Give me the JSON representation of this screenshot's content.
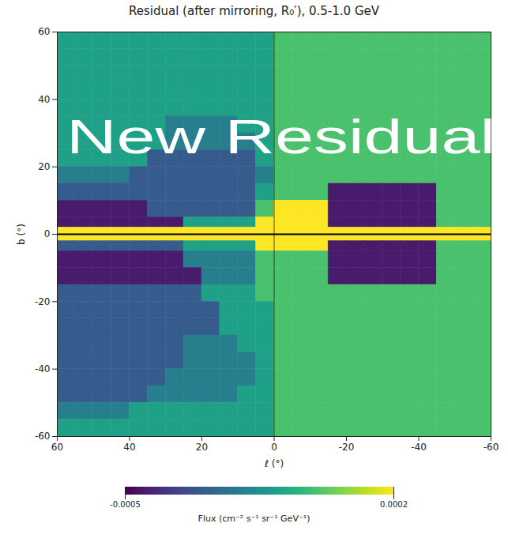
{
  "chart_data": {
    "type": "heatmap",
    "title": "Residual (after mirroring, R₀′), 0.5-1.0 GeV",
    "overlay_text": "New Residual",
    "x_label": "ℓ (°)",
    "y_label": "b (°)",
    "color": "viridis",
    "xlim": [
      60,
      -60
    ],
    "xticks": [
      60,
      40,
      20,
      0,
      -20,
      -40,
      -60
    ],
    "ylim": [
      -60,
      60
    ],
    "yticks": [
      -60,
      -40,
      -20,
      0,
      20,
      40,
      60
    ],
    "reference_lines": {
      "l": [
        0
      ],
      "b": [
        0
      ]
    },
    "colorbar": {
      "range": [
        -0.0005,
        0.0002
      ],
      "ticks": [
        -0.0005,
        0.0002
      ],
      "label": "Flux (cm⁻² s⁻¹ sr⁻¹ GeV⁻¹)"
    },
    "l_bins": [
      60,
      55,
      50,
      45,
      40,
      35,
      30,
      25,
      20,
      15,
      10,
      5,
      0,
      -5,
      -10,
      -15,
      -20,
      -25,
      -30,
      -35,
      -40,
      -45,
      -50,
      -55,
      -60
    ],
    "b_bins": [
      60,
      55,
      50,
      45,
      40,
      35,
      30,
      25,
      20,
      15,
      10,
      5,
      2,
      -2,
      -5,
      -10,
      -15,
      -20,
      -25,
      -30,
      -35,
      -40,
      -45,
      -50,
      -55,
      -60
    ],
    "values": [
      [
        -0.0001,
        -0.0001,
        -0.0001,
        -0.0001,
        -0.0001,
        -0.0001,
        -0.0001,
        -0.0001,
        -0.0001,
        -0.0001,
        -0.0001,
        -0.0001,
        0,
        0,
        0,
        0,
        0,
        0,
        0,
        0,
        0,
        0,
        0,
        0
      ],
      [
        -0.0001,
        -0.0001,
        -0.0001,
        -0.0001,
        -0.0001,
        -0.0001,
        -0.0001,
        -0.0001,
        -0.0001,
        -0.0001,
        -0.0001,
        -0.0001,
        0,
        0,
        0,
        0,
        0,
        0,
        0,
        0,
        0,
        0,
        0,
        0
      ],
      [
        -0.0001,
        -0.0001,
        -0.0001,
        -0.0001,
        -0.0001,
        -0.0001,
        -0.0001,
        -0.0001,
        -0.0001,
        -0.0001,
        -0.0001,
        -0.0001,
        0,
        0,
        0,
        0,
        0,
        0,
        0,
        0,
        0,
        0,
        0,
        0
      ],
      [
        -0.0001,
        -0.0001,
        -0.0001,
        -0.0001,
        -0.0001,
        -0.0001,
        -0.0001,
        -0.0001,
        -0.0001,
        -0.0001,
        -0.0001,
        -0.0001,
        0,
        0,
        0,
        0,
        0,
        0,
        0,
        0,
        0,
        0,
        0,
        0
      ],
      [
        -0.0001,
        -0.0001,
        -0.0001,
        -0.0001,
        -0.0001,
        -0.0001,
        -0.0001,
        -0.0001,
        -0.0001,
        -0.0001,
        -0.0001,
        -0.0001,
        0,
        0,
        0,
        0,
        0,
        0,
        0,
        0,
        0,
        0,
        0,
        0
      ],
      [
        -0.0001,
        -0.0001,
        -0.0001,
        -0.0001,
        -0.0001,
        -0.0001,
        -0.0002,
        -0.0002,
        -0.0002,
        -0.0002,
        -0.0001,
        -0.0001,
        0,
        0,
        0,
        0,
        0,
        0,
        0,
        0,
        0,
        0,
        0,
        0
      ],
      [
        -0.0001,
        -0.0001,
        -0.0001,
        -0.0001,
        -0.0001,
        -0.0001,
        -0.0002,
        -0.0002,
        -0.0002,
        -0.0002,
        -0.0002,
        -0.0001,
        0,
        0,
        0,
        0,
        0,
        0,
        0,
        0,
        0,
        0,
        0,
        0
      ],
      [
        -0.0001,
        -0.0001,
        -0.0001,
        -0.0001,
        -0.0001,
        -0.0003,
        -0.0003,
        -0.0003,
        -0.0003,
        -0.0003,
        -0.0003,
        -0.0001,
        0,
        0,
        0,
        0,
        0,
        0,
        0,
        0,
        0,
        0,
        0,
        0
      ],
      [
        -0.0002,
        -0.0002,
        -0.0002,
        -0.0002,
        -0.0003,
        -0.0003,
        -0.0003,
        -0.0003,
        -0.0003,
        -0.0003,
        -0.0003,
        -0.0002,
        0,
        0,
        0,
        0,
        0,
        0,
        0,
        0,
        0,
        0,
        0,
        0
      ],
      [
        -0.0003,
        -0.0003,
        -0.0003,
        -0.0003,
        -0.0003,
        -0.0003,
        -0.0003,
        -0.0003,
        -0.0003,
        -0.0003,
        -0.0003,
        -0.0001,
        0,
        0,
        0,
        -0.00045,
        -0.00045,
        -0.00045,
        -0.00045,
        -0.00045,
        -0.00045,
        0,
        0,
        0
      ],
      [
        -0.00045,
        -0.00045,
        -0.00045,
        -0.00045,
        -0.00045,
        -0.0003,
        -0.0003,
        -0.0003,
        -0.0003,
        -0.0003,
        -0.0003,
        0,
        0.0002,
        0.0002,
        0.0002,
        -0.00045,
        -0.00045,
        -0.00045,
        -0.00045,
        -0.00045,
        -0.00045,
        0,
        0,
        0
      ],
      [
        -0.00045,
        -0.00045,
        -0.00045,
        -0.00045,
        -0.00045,
        -0.00045,
        -0.00045,
        -0.0001,
        -0.0001,
        -0.0001,
        -0.0001,
        0.0002,
        0.0002,
        0.0002,
        0.0002,
        -0.00045,
        -0.00045,
        -0.00045,
        -0.00045,
        -0.00045,
        -0.00045,
        0,
        0,
        0
      ],
      [
        0.0002,
        0.0002,
        0.0002,
        0.0002,
        0.0002,
        0.0002,
        0.0002,
        0.0002,
        0.0002,
        0.0002,
        0.0002,
        0.0002,
        0.0002,
        0.0002,
        0.0002,
        0.0002,
        0.0002,
        0.0002,
        0.0002,
        0.0002,
        0.0002,
        0.0002,
        0.0002,
        0.0002
      ],
      [
        -0.0003,
        -0.0003,
        -0.0003,
        -0.0003,
        -0.0003,
        -0.0003,
        -0.0003,
        -0.0001,
        -0.0001,
        -0.0001,
        -0.0001,
        0.0002,
        0.0002,
        0.0002,
        0.0002,
        -0.00045,
        -0.00045,
        -0.00045,
        -0.00045,
        -0.00045,
        -0.00045,
        0,
        0,
        0
      ],
      [
        -0.00045,
        -0.00045,
        -0.00045,
        -0.00045,
        -0.00045,
        -0.00045,
        -0.00045,
        -0.0002,
        -0.0002,
        -0.0002,
        -0.0002,
        0,
        0,
        0,
        0,
        -0.00045,
        -0.00045,
        -0.00045,
        -0.00045,
        -0.00045,
        -0.00045,
        0,
        0,
        0
      ],
      [
        -0.00045,
        -0.00045,
        -0.00045,
        -0.00045,
        -0.00045,
        -0.00045,
        -0.00045,
        -0.00045,
        -0.0002,
        -0.0002,
        -0.0002,
        0,
        0,
        0,
        0,
        -0.00045,
        -0.00045,
        -0.00045,
        -0.00045,
        -0.00045,
        -0.00045,
        0,
        0,
        0
      ],
      [
        -0.0003,
        -0.0003,
        -0.0003,
        -0.0003,
        -0.0003,
        -0.0003,
        -0.0003,
        -0.0003,
        -0.0001,
        -0.0001,
        -0.0001,
        0,
        0,
        0,
        0,
        0,
        0,
        0,
        0,
        0,
        0,
        0,
        0,
        0
      ],
      [
        -0.0003,
        -0.0003,
        -0.0003,
        -0.0003,
        -0.0003,
        -0.0003,
        -0.0003,
        -0.0003,
        -0.0003,
        -0.0001,
        -0.0001,
        -0.0001,
        0,
        0,
        0,
        0,
        0,
        0,
        0,
        0,
        0,
        0,
        0,
        0
      ],
      [
        -0.0003,
        -0.0003,
        -0.0003,
        -0.0003,
        -0.0003,
        -0.0003,
        -0.0003,
        -0.0003,
        -0.0003,
        -0.0001,
        -0.0001,
        -0.0001,
        0,
        0,
        0,
        0,
        0,
        0,
        0,
        0,
        0,
        0,
        0,
        0
      ],
      [
        -0.0003,
        -0.0003,
        -0.0003,
        -0.0003,
        -0.0003,
        -0.0003,
        -0.0003,
        -0.0002,
        -0.0002,
        -0.0002,
        -0.0001,
        -0.0001,
        0,
        0,
        0,
        0,
        0,
        0,
        0,
        0,
        0,
        0,
        0,
        0
      ],
      [
        -0.0003,
        -0.0003,
        -0.0003,
        -0.0003,
        -0.0003,
        -0.0003,
        -0.0003,
        -0.0002,
        -0.0002,
        -0.0002,
        -0.0002,
        -0.0001,
        0,
        0,
        0,
        0,
        0,
        0,
        0,
        0,
        0,
        0,
        0,
        0
      ],
      [
        -0.0003,
        -0.0003,
        -0.0003,
        -0.0003,
        -0.0003,
        -0.0003,
        -0.0002,
        -0.0002,
        -0.0002,
        -0.0002,
        -0.0002,
        -0.0001,
        0,
        0,
        0,
        0,
        0,
        0,
        0,
        0,
        0,
        0,
        0,
        0
      ],
      [
        -0.0003,
        -0.0003,
        -0.0003,
        -0.0003,
        -0.0003,
        -0.0002,
        -0.0002,
        -0.0002,
        -0.0002,
        -0.0002,
        -0.0001,
        -0.0001,
        0,
        0,
        0,
        0,
        0,
        0,
        0,
        0,
        0,
        0,
        0,
        0
      ],
      [
        -0.0002,
        -0.0002,
        -0.0002,
        -0.0002,
        -0.0001,
        -0.0001,
        -0.0001,
        -0.0001,
        -0.0001,
        -0.0001,
        -0.0001,
        -0.0001,
        0,
        0,
        0,
        0,
        0,
        0,
        0,
        0,
        0,
        0,
        0,
        0
      ],
      [
        -0.0001,
        -0.0001,
        -0.0001,
        -0.0001,
        -0.0001,
        -0.0001,
        -0.0001,
        -0.0001,
        -0.0001,
        -0.0001,
        -0.0001,
        -0.0001,
        0,
        0,
        0,
        0,
        0,
        0,
        0,
        0,
        0,
        0,
        0,
        0
      ]
    ]
  }
}
